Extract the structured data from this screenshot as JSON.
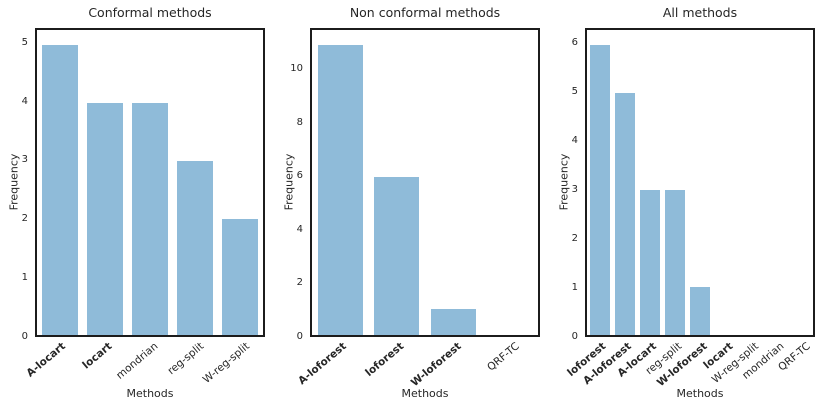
{
  "styles": {
    "bar_color": "#8fbbd9",
    "spine_color": "#1c1c1c",
    "text_color": "#262626",
    "background": "#ffffff"
  },
  "chart_data": [
    {
      "type": "bar",
      "title": "Conformal methods",
      "xlabel": "Methods",
      "ylabel": "Frequency",
      "categories": [
        "A-locart",
        "locart",
        "mondrian",
        "reg-split",
        "W-reg-split"
      ],
      "bold_flags": [
        true,
        true,
        false,
        false,
        false
      ],
      "values": [
        5,
        4,
        4,
        3,
        2
      ],
      "yticks": [
        0,
        1,
        2,
        3,
        4,
        5
      ],
      "ylim": [
        0,
        5.25
      ],
      "bar_color": "#8fbbd9",
      "grid": false,
      "legend": null
    },
    {
      "type": "bar",
      "title": "Non conformal methods",
      "xlabel": "Methods",
      "ylabel": "Frequency",
      "categories": [
        "A-loforest",
        "loforest",
        "W-loforest",
        "QRF-TC"
      ],
      "bold_flags": [
        true,
        true,
        true,
        false
      ],
      "values": [
        11,
        6,
        1,
        0
      ],
      "yticks": [
        0,
        2,
        4,
        6,
        8,
        10
      ],
      "ylim": [
        0,
        11.55
      ],
      "bar_color": "#8fbbd9",
      "grid": false,
      "legend": null
    },
    {
      "type": "bar",
      "title": "All methods",
      "xlabel": "Methods",
      "ylabel": "Frequency",
      "categories": [
        "loforest",
        "A-loforest",
        "A-locart",
        "reg-split",
        "W-loforest",
        "locart",
        "W-reg-split",
        "mondrian",
        "QRF-TC"
      ],
      "bold_flags": [
        true,
        true,
        true,
        false,
        true,
        true,
        false,
        false,
        false
      ],
      "values": [
        6,
        5,
        3,
        3,
        1,
        0,
        0,
        0,
        0
      ],
      "yticks": [
        0,
        1,
        2,
        3,
        4,
        5,
        6
      ],
      "ylim": [
        0,
        6.3
      ],
      "bar_color": "#8fbbd9",
      "grid": false,
      "legend": null
    }
  ]
}
